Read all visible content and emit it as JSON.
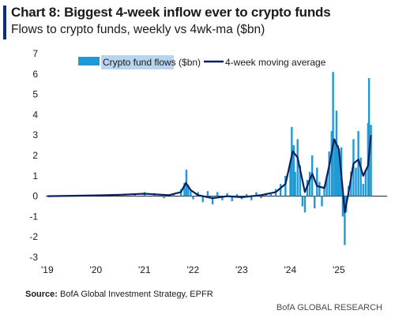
{
  "header": {
    "title": "Chart 8: Biggest 4-week inflow ever to crypto funds",
    "subtitle": "Flows to crypto funds, weekly vs 4wk-ma ($bn)"
  },
  "footer": {
    "source_label": "Source:",
    "source_text": "BofA Global Investment Strategy, EPFR",
    "brand": "BofA GLOBAL RESEARCH"
  },
  "colors": {
    "accent": "#0a2f7a",
    "bar": "#1f9ad6",
    "line": "#0d1f5c",
    "legend_highlight": "#b9d4ee"
  },
  "chart_data": {
    "type": "bar",
    "title": "Chart 8: Biggest 4-week inflow ever to crypto funds",
    "subtitle": "Flows to crypto funds, weekly vs 4wk-ma ($bn)",
    "ylim": [
      -3,
      7
    ],
    "yticks": [
      7,
      6,
      5,
      4,
      3,
      2,
      1,
      0,
      -1,
      -2,
      -3
    ],
    "xlim": [
      2019.0,
      2025.75
    ],
    "xticks": [
      {
        "label": "'19",
        "x": 2019
      },
      {
        "label": "'20",
        "x": 2020
      },
      {
        "label": "'21",
        "x": 2021
      },
      {
        "label": "'22",
        "x": 2022
      },
      {
        "label": "'23",
        "x": 2023
      },
      {
        "label": "'24",
        "x": 2024
      },
      {
        "label": "'25",
        "x": 2025
      }
    ],
    "grid": false,
    "legend_position": "top",
    "series": [
      {
        "name": "Crypto fund flows ($bn)",
        "kind": "bar",
        "points": [
          [
            2019.0,
            0.02
          ],
          [
            2019.2,
            0.03
          ],
          [
            2019.4,
            0.01
          ],
          [
            2019.6,
            0.04
          ],
          [
            2019.8,
            0.02
          ],
          [
            2020.0,
            0.05
          ],
          [
            2020.2,
            0.08
          ],
          [
            2020.4,
            0.1
          ],
          [
            2020.6,
            0.05
          ],
          [
            2020.8,
            0.12
          ],
          [
            2021.0,
            0.2
          ],
          [
            2021.2,
            0.15
          ],
          [
            2021.4,
            -0.1
          ],
          [
            2021.6,
            0.1
          ],
          [
            2021.75,
            0.35
          ],
          [
            2021.82,
            0.65
          ],
          [
            2021.86,
            1.3
          ],
          [
            2021.9,
            0.55
          ],
          [
            2021.95,
            0.25
          ],
          [
            2022.0,
            -0.15
          ],
          [
            2022.1,
            0.2
          ],
          [
            2022.2,
            -0.3
          ],
          [
            2022.3,
            0.25
          ],
          [
            2022.4,
            -0.4
          ],
          [
            2022.5,
            0.2
          ],
          [
            2022.6,
            -0.2
          ],
          [
            2022.7,
            0.15
          ],
          [
            2022.8,
            -0.25
          ],
          [
            2022.9,
            0.1
          ],
          [
            2023.0,
            -0.15
          ],
          [
            2023.1,
            0.1
          ],
          [
            2023.2,
            -0.2
          ],
          [
            2023.3,
            0.2
          ],
          [
            2023.4,
            -0.1
          ],
          [
            2023.5,
            0.15
          ],
          [
            2023.6,
            0.1
          ],
          [
            2023.7,
            0.35
          ],
          [
            2023.8,
            0.6
          ],
          [
            2023.9,
            1.0
          ],
          [
            2024.0,
            1.6
          ],
          [
            2024.03,
            3.4
          ],
          [
            2024.07,
            2.5
          ],
          [
            2024.1,
            1.2
          ],
          [
            2024.15,
            2.8
          ],
          [
            2024.2,
            1.5
          ],
          [
            2024.25,
            -0.5
          ],
          [
            2024.3,
            -0.8
          ],
          [
            2024.35,
            0.8
          ],
          [
            2024.4,
            1.2
          ],
          [
            2024.45,
            2.0
          ],
          [
            2024.5,
            -0.6
          ],
          [
            2024.55,
            1.4
          ],
          [
            2024.6,
            0.7
          ],
          [
            2024.65,
            -0.5
          ],
          [
            2024.7,
            0.5
          ],
          [
            2024.75,
            1.0
          ],
          [
            2024.8,
            2.2
          ],
          [
            2024.85,
            3.2
          ],
          [
            2024.88,
            6.1
          ],
          [
            2024.92,
            2.8
          ],
          [
            2024.95,
            4.2
          ],
          [
            2024.98,
            2.5
          ],
          [
            2025.0,
            2.0
          ],
          [
            2025.02,
            1.6
          ],
          [
            2025.05,
            2.4
          ],
          [
            2025.08,
            -1.0
          ],
          [
            2025.12,
            -2.4
          ],
          [
            2025.15,
            -0.8
          ],
          [
            2025.2,
            0.5
          ],
          [
            2025.25,
            1.2
          ],
          [
            2025.3,
            2.8
          ],
          [
            2025.35,
            1.4
          ],
          [
            2025.4,
            3.2
          ],
          [
            2025.45,
            1.9
          ],
          [
            2025.5,
            0.6
          ],
          [
            2025.55,
            1.3
          ],
          [
            2025.6,
            3.6
          ],
          [
            2025.62,
            5.8
          ],
          [
            2025.66,
            3.5
          ]
        ]
      },
      {
        "name": "4-week moving average",
        "kind": "line",
        "points": [
          [
            2019.0,
            0.0
          ],
          [
            2019.5,
            0.02
          ],
          [
            2020.0,
            0.04
          ],
          [
            2020.5,
            0.07
          ],
          [
            2021.0,
            0.12
          ],
          [
            2021.5,
            0.05
          ],
          [
            2021.75,
            0.2
          ],
          [
            2021.85,
            0.65
          ],
          [
            2021.95,
            0.3
          ],
          [
            2022.1,
            0.05
          ],
          [
            2022.4,
            -0.1
          ],
          [
            2022.7,
            0.0
          ],
          [
            2023.0,
            -0.05
          ],
          [
            2023.4,
            0.05
          ],
          [
            2023.7,
            0.2
          ],
          [
            2023.9,
            0.6
          ],
          [
            2024.05,
            2.2
          ],
          [
            2024.15,
            1.9
          ],
          [
            2024.3,
            0.2
          ],
          [
            2024.45,
            1.1
          ],
          [
            2024.55,
            0.5
          ],
          [
            2024.7,
            0.4
          ],
          [
            2024.8,
            1.5
          ],
          [
            2024.9,
            2.8
          ],
          [
            2025.0,
            2.3
          ],
          [
            2025.08,
            0.3
          ],
          [
            2025.12,
            -0.8
          ],
          [
            2025.2,
            0.2
          ],
          [
            2025.3,
            1.6
          ],
          [
            2025.4,
            1.8
          ],
          [
            2025.5,
            1.0
          ],
          [
            2025.6,
            1.5
          ],
          [
            2025.66,
            3.0
          ]
        ]
      }
    ]
  }
}
